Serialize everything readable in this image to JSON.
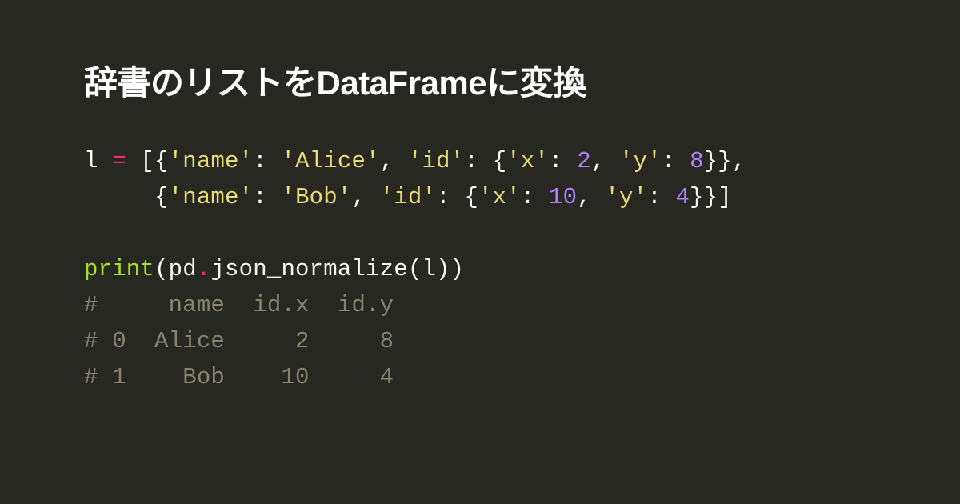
{
  "title": "辞書のリストをDataFrameに変換",
  "colors": {
    "background": "#272822",
    "title_text": "#ffffff",
    "rule": "#aaaaaa",
    "default": "#f8f8f2",
    "operator": "#f92672",
    "string": "#e6db74",
    "number": "#ae81ff",
    "func": "#a6e22e",
    "comment": "#88846f"
  },
  "typography": {
    "title_fontsize": 42,
    "title_weight": 700,
    "code_fontsize": 29,
    "code_line_height": 1.55
  },
  "code_lines": [
    [
      {
        "t": "l ",
        "c": "default"
      },
      {
        "t": "=",
        "c": "operator"
      },
      {
        "t": " [{",
        "c": "punct"
      },
      {
        "t": "'name'",
        "c": "string"
      },
      {
        "t": ": ",
        "c": "punct"
      },
      {
        "t": "'Alice'",
        "c": "string"
      },
      {
        "t": ", ",
        "c": "punct"
      },
      {
        "t": "'id'",
        "c": "string"
      },
      {
        "t": ": {",
        "c": "punct"
      },
      {
        "t": "'x'",
        "c": "string"
      },
      {
        "t": ": ",
        "c": "punct"
      },
      {
        "t": "2",
        "c": "number"
      },
      {
        "t": ", ",
        "c": "punct"
      },
      {
        "t": "'y'",
        "c": "string"
      },
      {
        "t": ": ",
        "c": "punct"
      },
      {
        "t": "8",
        "c": "number"
      },
      {
        "t": "}},",
        "c": "punct"
      }
    ],
    [
      {
        "t": "     {",
        "c": "punct"
      },
      {
        "t": "'name'",
        "c": "string"
      },
      {
        "t": ": ",
        "c": "punct"
      },
      {
        "t": "'Bob'",
        "c": "string"
      },
      {
        "t": ", ",
        "c": "punct"
      },
      {
        "t": "'id'",
        "c": "string"
      },
      {
        "t": ": {",
        "c": "punct"
      },
      {
        "t": "'x'",
        "c": "string"
      },
      {
        "t": ": ",
        "c": "punct"
      },
      {
        "t": "10",
        "c": "number"
      },
      {
        "t": ", ",
        "c": "punct"
      },
      {
        "t": "'y'",
        "c": "string"
      },
      {
        "t": ": ",
        "c": "punct"
      },
      {
        "t": "4",
        "c": "number"
      },
      {
        "t": "}}]",
        "c": "punct"
      }
    ],
    [],
    [
      {
        "t": "print",
        "c": "func"
      },
      {
        "t": "(pd",
        "c": "default"
      },
      {
        "t": ".",
        "c": "operator"
      },
      {
        "t": "json_normalize(l))",
        "c": "default"
      }
    ],
    [
      {
        "t": "#     name  id.x  id.y",
        "c": "comment"
      }
    ],
    [
      {
        "t": "# 0  Alice     2     8",
        "c": "comment"
      }
    ],
    [
      {
        "t": "# 1    Bob    10     4",
        "c": "comment"
      }
    ]
  ]
}
